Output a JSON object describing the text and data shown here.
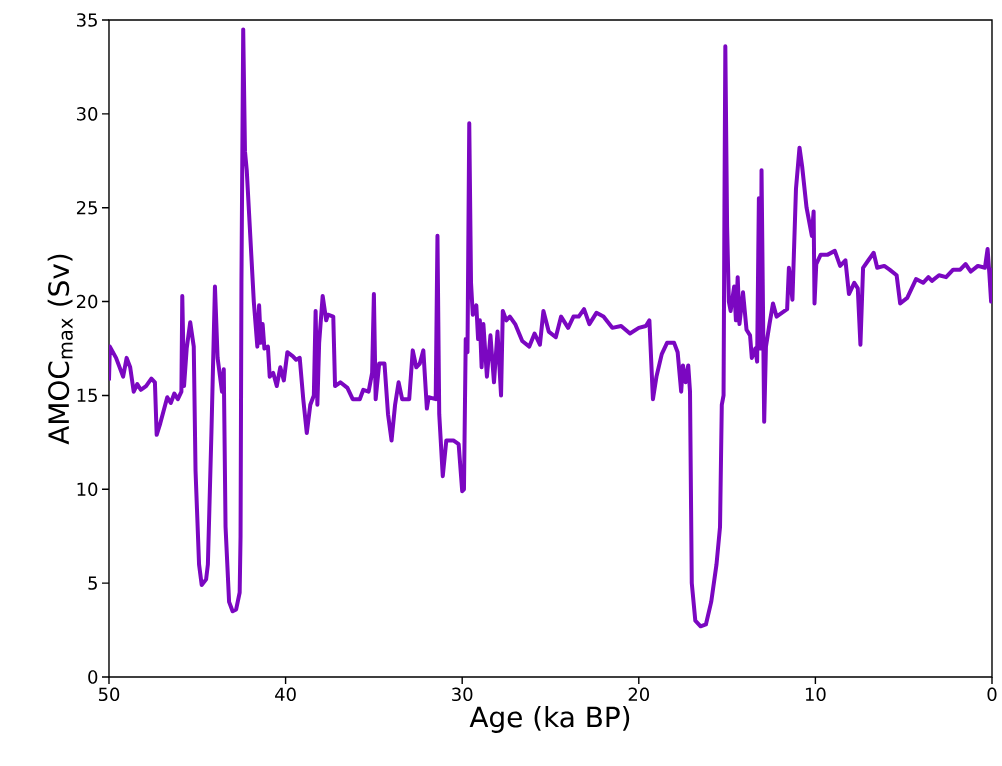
{
  "chart_data": {
    "type": "line",
    "xlabel": "Age (ka BP)",
    "ylabel": "AMOC$_{max}$ (Sv)",
    "xlim": [
      50,
      0
    ],
    "ylim": [
      0,
      35
    ],
    "xticks": [
      50,
      40,
      30,
      20,
      10,
      0
    ],
    "yticks": [
      0,
      5,
      10,
      15,
      20,
      25,
      30,
      35
    ],
    "grid": false,
    "marker": "none",
    "line_style": "solid",
    "series": [
      {
        "color": "#7b07c1",
        "x": [
          50,
          49.95,
          49.6,
          49.2,
          49.0,
          48.8,
          48.6,
          48.4,
          48.2,
          47.9,
          47.6,
          47.4,
          47.3,
          47.1,
          46.9,
          46.7,
          46.5,
          46.3,
          46.1,
          45.9,
          45.85,
          45.75,
          45.6,
          45.4,
          45.2,
          45.1,
          44.9,
          44.75,
          44.5,
          44.4,
          44.2,
          44.0,
          43.85,
          43.6,
          43.5,
          43.4,
          43.2,
          43.0,
          42.8,
          42.6,
          42.55,
          42.5,
          42.4,
          42.3,
          42.2,
          42.0,
          41.8,
          41.6,
          41.5,
          41.4,
          41.3,
          41.2,
          41.0,
          40.9,
          40.7,
          40.5,
          40.3,
          40.1,
          39.9,
          39.6,
          39.4,
          39.2,
          39.0,
          38.8,
          38.6,
          38.4,
          38.3,
          38.2,
          38.1,
          37.9,
          37.7,
          37.6,
          37.3,
          37.2,
          36.9,
          36.5,
          36.2,
          35.8,
          35.6,
          35.3,
          35.1,
          35.0,
          34.9,
          34.7,
          34.4,
          34.2,
          34.0,
          33.8,
          33.6,
          33.4,
          33.0,
          32.8,
          32.6,
          32.4,
          32.2,
          32.0,
          31.9,
          31.5,
          31.4,
          31.3,
          31.1,
          30.9,
          30.5,
          30.2,
          30.0,
          29.9,
          29.8,
          29.7,
          29.6,
          29.5,
          29.4,
          29.2,
          29.1,
          29.0,
          28.9,
          28.8,
          28.6,
          28.4,
          28.2,
          28.0,
          27.8,
          27.7,
          27.5,
          27.3,
          27.0,
          26.6,
          26.2,
          25.9,
          25.6,
          25.4,
          25.1,
          24.7,
          24.4,
          24.0,
          23.7,
          23.4,
          23.1,
          22.8,
          22.4,
          22.0,
          21.5,
          21.0,
          20.5,
          20.0,
          19.6,
          19.4,
          19.2,
          19.0,
          18.7,
          18.4,
          18.0,
          17.8,
          17.6,
          17.5,
          17.35,
          17.2,
          17.1,
          17.0,
          16.8,
          16.5,
          16.2,
          15.9,
          15.6,
          15.4,
          15.3,
          15.2,
          15.15,
          15.1,
          15.0,
          14.9,
          14.8,
          14.6,
          14.5,
          14.4,
          14.3,
          14.1,
          13.9,
          13.7,
          13.6,
          13.4,
          13.3,
          13.2,
          13.1,
          13.05,
          12.9,
          12.8,
          12.6,
          12.4,
          12.2,
          11.9,
          11.6,
          11.5,
          11.3,
          11.1,
          10.9,
          10.75,
          10.5,
          10.2,
          10.1,
          10.05,
          9.95,
          9.7,
          9.3,
          8.9,
          8.6,
          8.3,
          8.1,
          7.8,
          7.6,
          7.45,
          7.3,
          7.0,
          6.7,
          6.5,
          6.1,
          5.8,
          5.4,
          5.2,
          4.8,
          4.3,
          3.9,
          3.6,
          3.4,
          3.0,
          2.6,
          2.2,
          1.8,
          1.5,
          1.2,
          0.8,
          0.4,
          0.25,
          0.15,
          0.05,
          0
        ],
        "values": [
          15.8,
          17.6,
          17.0,
          16.0,
          17.0,
          16.5,
          15.2,
          15.6,
          15.3,
          15.5,
          15.9,
          15.7,
          12.9,
          13.5,
          14.2,
          14.9,
          14.6,
          15.1,
          14.8,
          15.2,
          20.3,
          15.5,
          17.5,
          18.9,
          17.6,
          11,
          6,
          4.9,
          5.2,
          6,
          13,
          20.8,
          17,
          15.2,
          16.4,
          8,
          4,
          3.5,
          3.6,
          4.5,
          7.5,
          21,
          34.5,
          28,
          27,
          23.5,
          20,
          17.6,
          19.8,
          17.8,
          18.8,
          17.5,
          17.6,
          16,
          16.2,
          15.5,
          16.5,
          15.8,
          17.3,
          17.1,
          16.9,
          17.0,
          14.8,
          13.0,
          14.5,
          15.0,
          19.5,
          14.5,
          17.8,
          20.3,
          19.0,
          19.3,
          19.2,
          15.5,
          15.7,
          15.4,
          14.8,
          14.8,
          15.3,
          15.2,
          16.2,
          20.4,
          14.8,
          16.7,
          16.7,
          14.0,
          12.6,
          14.5,
          15.7,
          14.8,
          14.8,
          17.4,
          16.5,
          16.7,
          17.4,
          14.3,
          14.9,
          14.8,
          23.5,
          14.0,
          10.7,
          12.6,
          12.6,
          12.4,
          9.9,
          10,
          18,
          17.3,
          29.5,
          21,
          19.3,
          19.8,
          18,
          19,
          16.5,
          18.8,
          16,
          18.2,
          15.7,
          18.4,
          15,
          19.5,
          19,
          19.2,
          18.8,
          17.9,
          17.6,
          18.3,
          17.7,
          19.5,
          18.4,
          18.1,
          19.2,
          18.6,
          19.2,
          19.2,
          19.6,
          18.8,
          19.4,
          19.2,
          18.6,
          18.7,
          18.3,
          18.6,
          18.7,
          19.0,
          14.8,
          16.0,
          17.2,
          17.8,
          17.8,
          17.3,
          15.2,
          16.6,
          15.7,
          16.6,
          15.2,
          5,
          3,
          2.7,
          2.8,
          4,
          6,
          8,
          14.5,
          15,
          25,
          33.6,
          24,
          20,
          19.5,
          20.8,
          19,
          21.3,
          18.8,
          20.5,
          18.5,
          18.2,
          17,
          17.5,
          16.8,
          25.5,
          17.5,
          27,
          13.6,
          17.6,
          18.8,
          19.9,
          19.2,
          19.4,
          19.6,
          21.8,
          20.1,
          26,
          28.2,
          27.2,
          25,
          23.5,
          24.8,
          19.9,
          22.0,
          22.5,
          22.5,
          22.7,
          21.9,
          22.2,
          20.4,
          21,
          20.7,
          17.7,
          21.8,
          22.2,
          22.6,
          21.8,
          21.9,
          21.7,
          21.4,
          19.9,
          20.2,
          21.2,
          21.0,
          21.3,
          21.1,
          21.4,
          21.3,
          21.7,
          21.7,
          22.0,
          21.6,
          21.9,
          21.8,
          22.8,
          21.5,
          20,
          21.8
        ]
      }
    ]
  }
}
